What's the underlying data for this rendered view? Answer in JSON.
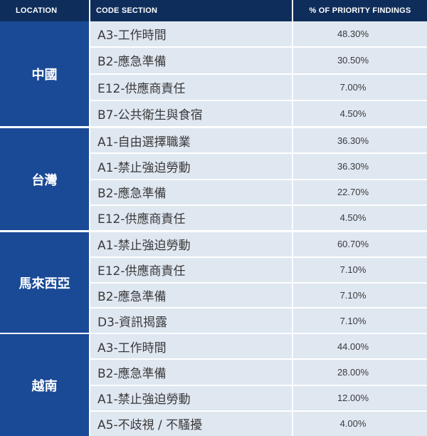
{
  "headers": {
    "location": "LOCATION",
    "code_section": "CODE SECTION",
    "percent": "% OF PRIORITY FINDINGS"
  },
  "groups": [
    {
      "location": "中國",
      "rows": [
        {
          "code": "A3-工作時間",
          "percent": "48.30%"
        },
        {
          "code": "B2-應急準備",
          "percent": "30.50%"
        },
        {
          "code": "E12-供應商責任",
          "percent": "7.00%"
        },
        {
          "code": "B7-公共衛生與食宿",
          "percent": "4.50%"
        }
      ]
    },
    {
      "location": "台灣",
      "rows": [
        {
          "code": "A1-自由選擇職業",
          "percent": "36.30%"
        },
        {
          "code": "A1-禁止強迫勞動",
          "percent": "36.30%"
        },
        {
          "code": "B2-應急準備",
          "percent": "22.70%"
        },
        {
          "code": "E12-供應商責任",
          "percent": "4.50%"
        }
      ]
    },
    {
      "location": "馬來西亞",
      "rows": [
        {
          "code": "A1-禁止強迫勞動",
          "percent": "60.70%"
        },
        {
          "code": "E12-供應商責任",
          "percent": "7.10%"
        },
        {
          "code": "B2-應急準備",
          "percent": "7.10%"
        },
        {
          "code": "D3-資訊揭露",
          "percent": "7.10%"
        }
      ]
    },
    {
      "location": "越南",
      "rows": [
        {
          "code": "A3-工作時間",
          "percent": "44.00%"
        },
        {
          "code": "B2-應急準備",
          "percent": "28.00%"
        },
        {
          "code": "A1-禁止強迫勞動",
          "percent": "12.00%"
        },
        {
          "code": "A5-不歧視 / 不騷擾",
          "percent": "4.00%"
        }
      ]
    }
  ]
}
